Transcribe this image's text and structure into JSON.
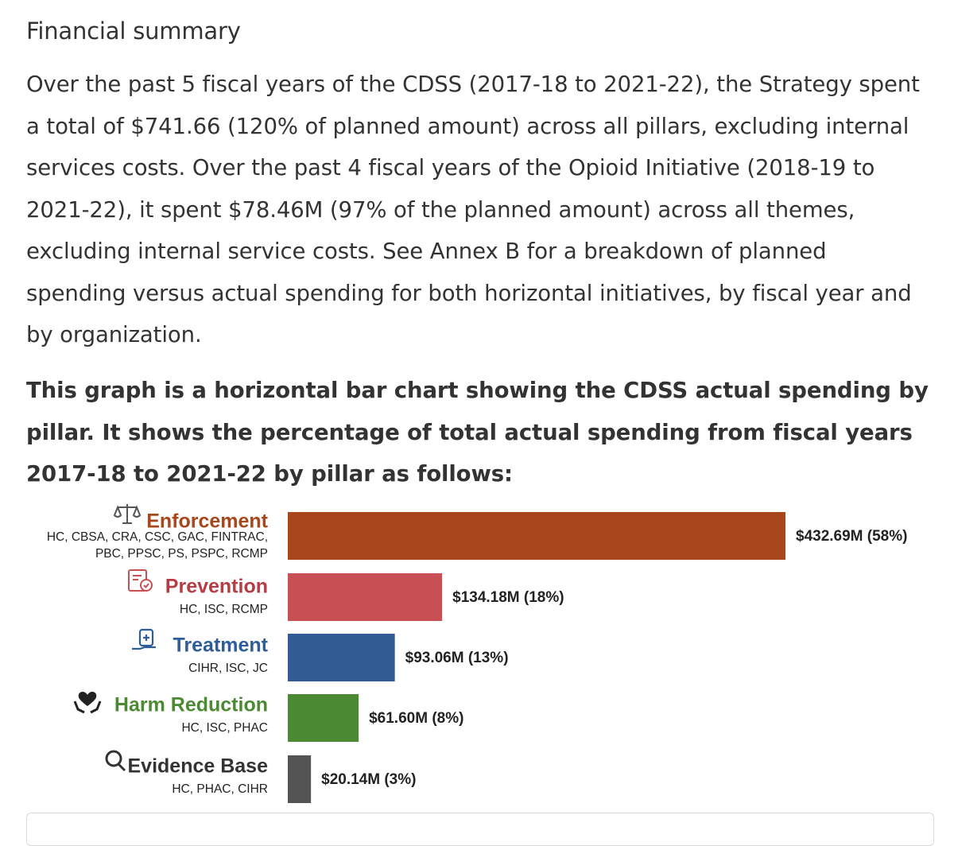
{
  "section": {
    "title": "Financial summary",
    "summary": "Over the past 5 fiscal years of the CDSS (2017-18 to 2021-22), the Strategy spent a total of $741.66 (120% of planned amount) across all pillars, excluding internal services costs. Over the past 4 fiscal years of the Opioid Initiative (2018-19 to 2021-22), it spent $78.46M (97% of the planned amount) across all themes, excluding internal service costs. See Annex B for a breakdown of planned spending versus actual spending for both horizontal initiatives, by fiscal year and by organization.",
    "chart_description": "This graph is a horizontal bar chart showing the CDSS actual spending by pillar. It shows the percentage of total actual spending from fiscal years 2017-18 to 2021-22 by pillar as follows:"
  },
  "chart_data": {
    "type": "bar",
    "orientation": "horizontal",
    "title": "",
    "xlabel": "",
    "ylabel": "",
    "units": "$M",
    "grid": false,
    "legend": "none",
    "categories": [
      "Enforcement",
      "Prevention",
      "Treatment",
      "Harm Reduction",
      "Evidence Base"
    ],
    "values": [
      432.69,
      134.18,
      93.06,
      61.6,
      20.14
    ],
    "xlim": [
      0,
      432.69
    ],
    "bars": [
      {
        "name": "Enforcement",
        "icon": "scales-icon",
        "orgs": [
          "HC, CBSA, CRA, CSC, GAC, FINTRAC,",
          "PBC, PPSC, PS, PSPC, RCMP"
        ],
        "value": 432.69,
        "label": "$432.69M (58%)",
        "color": "#a8461c",
        "label_color": "#a8461c"
      },
      {
        "name": "Prevention",
        "icon": "shield-document-icon",
        "orgs": [
          "HC, ISC, RCMP"
        ],
        "value": 134.18,
        "label": "$134.18M (18%)",
        "color": "#c84f54",
        "label_color": "#b83c43"
      },
      {
        "name": "Treatment",
        "icon": "medicine-hand-icon",
        "orgs": [
          "CIHR, ISC, JC"
        ],
        "value": 93.06,
        "label": "$93.06M (13%)",
        "color": "#335b93",
        "label_color": "#2f5d9a"
      },
      {
        "name": "Harm Reduction",
        "icon": "heart-hands-icon",
        "orgs": [
          "HC, ISC, PHAC"
        ],
        "value": 61.6,
        "label": "$61.60M (8%)",
        "color": "#4b8a33",
        "label_color": "#4b8a33"
      },
      {
        "name": "Evidence Base",
        "icon": "magnifier-icon",
        "orgs": [
          "HC, PHAC, CIHR"
        ],
        "value": 20.14,
        "label": "$20.14M (3%)",
        "color": "#545454",
        "label_color": "#333333"
      }
    ]
  }
}
